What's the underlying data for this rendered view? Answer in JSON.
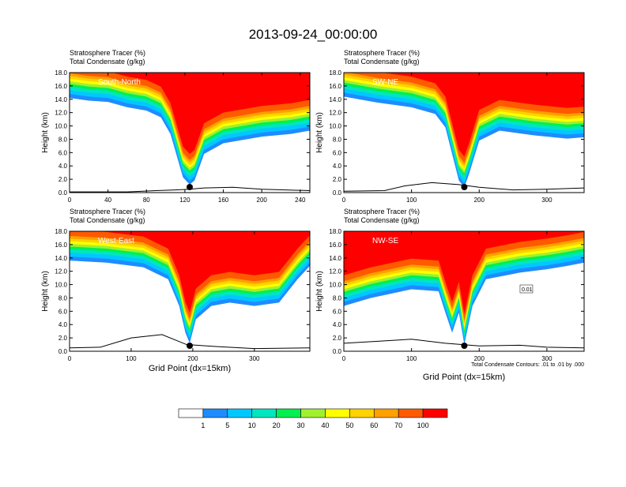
{
  "title": "2013-09-24_00:00:00",
  "colorbar": {
    "labels": [
      "1",
      "5",
      "10",
      "20",
      "30",
      "40",
      "50",
      "60",
      "70",
      "100"
    ],
    "colors": [
      "#ffffff",
      "#1e8cff",
      "#00c8ff",
      "#00e6c0",
      "#00f050",
      "#a0f030",
      "#ffff00",
      "#ffd200",
      "#ffa000",
      "#ff5a00",
      "#ff0000"
    ]
  },
  "chart_data": [
    {
      "type": "heatmap",
      "label": "South-North",
      "title_lines": [
        "Stratosphere Tracer   (%)",
        "Total Condensate   (g/kg)"
      ],
      "ylabel": "Height (km)",
      "xlabel": "",
      "xticks": [
        "0",
        "40",
        "80",
        "120",
        "160",
        "200",
        "240"
      ],
      "xlim": [
        0,
        250
      ],
      "yticks": [
        "0.0",
        "2.0",
        "4.0",
        "6.0",
        "8.0",
        "10.0",
        "12.0",
        "14.0",
        "16.0",
        "18.0"
      ],
      "ylim": [
        0,
        18
      ],
      "marker_x": 125,
      "tropo": [
        [
          0,
          15.4
        ],
        [
          20,
          15.0
        ],
        [
          40,
          14.8
        ],
        [
          60,
          14.0
        ],
        [
          80,
          13.5
        ],
        [
          95,
          12.5
        ],
        [
          105,
          10.0
        ],
        [
          112,
          6.5
        ],
        [
          118,
          3.5
        ],
        [
          125,
          2.4
        ],
        [
          130,
          3.0
        ],
        [
          140,
          7.0
        ],
        [
          160,
          8.6
        ],
        [
          200,
          9.6
        ],
        [
          230,
          10.0
        ],
        [
          250,
          10.5
        ]
      ],
      "terrain": [
        [
          0,
          0.1
        ],
        [
          60,
          0.1
        ],
        [
          90,
          0.3
        ],
        [
          110,
          0.4
        ],
        [
          125,
          0.5
        ],
        [
          140,
          0.7
        ],
        [
          170,
          0.8
        ],
        [
          200,
          0.5
        ],
        [
          250,
          0.3
        ]
      ]
    },
    {
      "type": "heatmap",
      "label": "SW-NE",
      "title_lines": [
        "Stratosphere Tracer   (%)",
        "Total Condensate   (g/kg)"
      ],
      "ylabel": "Height (km)",
      "xlabel": "",
      "xticks": [
        "0",
        "100",
        "200",
        "300"
      ],
      "xlim": [
        0,
        355
      ],
      "yticks": [
        "0.0",
        "2.0",
        "4.0",
        "6.0",
        "8.0",
        "10.0",
        "12.0",
        "14.0",
        "16.0",
        "18.0"
      ],
      "ylim": [
        0,
        18
      ],
      "marker_x": 178,
      "tropo": [
        [
          0,
          15.6
        ],
        [
          50,
          14.7
        ],
        [
          100,
          14.0
        ],
        [
          135,
          13.0
        ],
        [
          150,
          11.0
        ],
        [
          160,
          7.0
        ],
        [
          170,
          3.0
        ],
        [
          178,
          2.0
        ],
        [
          185,
          4.0
        ],
        [
          200,
          9.0
        ],
        [
          230,
          10.5
        ],
        [
          280,
          9.8
        ],
        [
          330,
          9.3
        ],
        [
          355,
          9.5
        ]
      ],
      "terrain": [
        [
          0,
          0.2
        ],
        [
          60,
          0.3
        ],
        [
          90,
          1.0
        ],
        [
          130,
          1.5
        ],
        [
          170,
          1.2
        ],
        [
          200,
          0.8
        ],
        [
          250,
          0.4
        ],
        [
          300,
          0.5
        ],
        [
          355,
          0.7
        ]
      ]
    },
    {
      "type": "heatmap",
      "label": "West-East",
      "title_lines": [
        "Stratosphere Tracer   (%)",
        "Total Condensate   (g/kg)"
      ],
      "ylabel": "Height (km)",
      "xlabel": "Grid Point (dx=15km)",
      "xticks": [
        "0",
        "100",
        "200",
        "300"
      ],
      "xlim": [
        0,
        390
      ],
      "yticks": [
        "0.0",
        "2.0",
        "4.0",
        "6.0",
        "8.0",
        "10.0",
        "12.0",
        "14.0",
        "16.0",
        "18.0"
      ],
      "ylim": [
        0,
        18
      ],
      "marker_x": 195,
      "tropo": [
        [
          0,
          14.8
        ],
        [
          60,
          14.5
        ],
        [
          120,
          13.8
        ],
        [
          160,
          12.0
        ],
        [
          178,
          8.0
        ],
        [
          188,
          4.0
        ],
        [
          195,
          2.4
        ],
        [
          205,
          6.0
        ],
        [
          230,
          8.0
        ],
        [
          260,
          8.5
        ],
        [
          300,
          8.0
        ],
        [
          340,
          8.5
        ],
        [
          370,
          12.0
        ],
        [
          390,
          14.0
        ]
      ],
      "terrain": [
        [
          0,
          0.5
        ],
        [
          50,
          0.6
        ],
        [
          100,
          2.0
        ],
        [
          150,
          2.5
        ],
        [
          190,
          1.0
        ],
        [
          240,
          0.7
        ],
        [
          300,
          0.4
        ],
        [
          390,
          0.5
        ]
      ]
    },
    {
      "type": "heatmap",
      "label": "NW-SE",
      "title_lines": [
        "Stratosphere Tracer   (%)",
        "Total Condensate   (g/kg)"
      ],
      "ylabel": "Height (km)",
      "xlabel": "Grid Point (dx=15km)",
      "footnote": "Total Condensate Contours: .01 to .01 by .000",
      "xticks": [
        "0",
        "100",
        "200",
        "300"
      ],
      "xlim": [
        0,
        355
      ],
      "yticks": [
        "0.0",
        "2.0",
        "4.0",
        "6.0",
        "8.0",
        "10.0",
        "12.0",
        "14.0",
        "16.0",
        "18.0"
      ],
      "ylim": [
        0,
        18
      ],
      "marker_x": 178,
      "contour_label": "0.01",
      "tropo": [
        [
          0,
          8.0
        ],
        [
          40,
          9.2
        ],
        [
          100,
          10.5
        ],
        [
          140,
          10.2
        ],
        [
          150,
          7.0
        ],
        [
          160,
          4.0
        ],
        [
          170,
          7.0
        ],
        [
          178,
          2.2
        ],
        [
          190,
          8.0
        ],
        [
          210,
          12.0
        ],
        [
          260,
          13.0
        ],
        [
          300,
          13.5
        ],
        [
          330,
          14.0
        ],
        [
          355,
          14.5
        ]
      ],
      "terrain": [
        [
          0,
          1.2
        ],
        [
          50,
          1.5
        ],
        [
          100,
          1.8
        ],
        [
          150,
          1.2
        ],
        [
          200,
          0.8
        ],
        [
          260,
          0.9
        ],
        [
          300,
          0.6
        ],
        [
          355,
          0.5
        ]
      ]
    }
  ]
}
